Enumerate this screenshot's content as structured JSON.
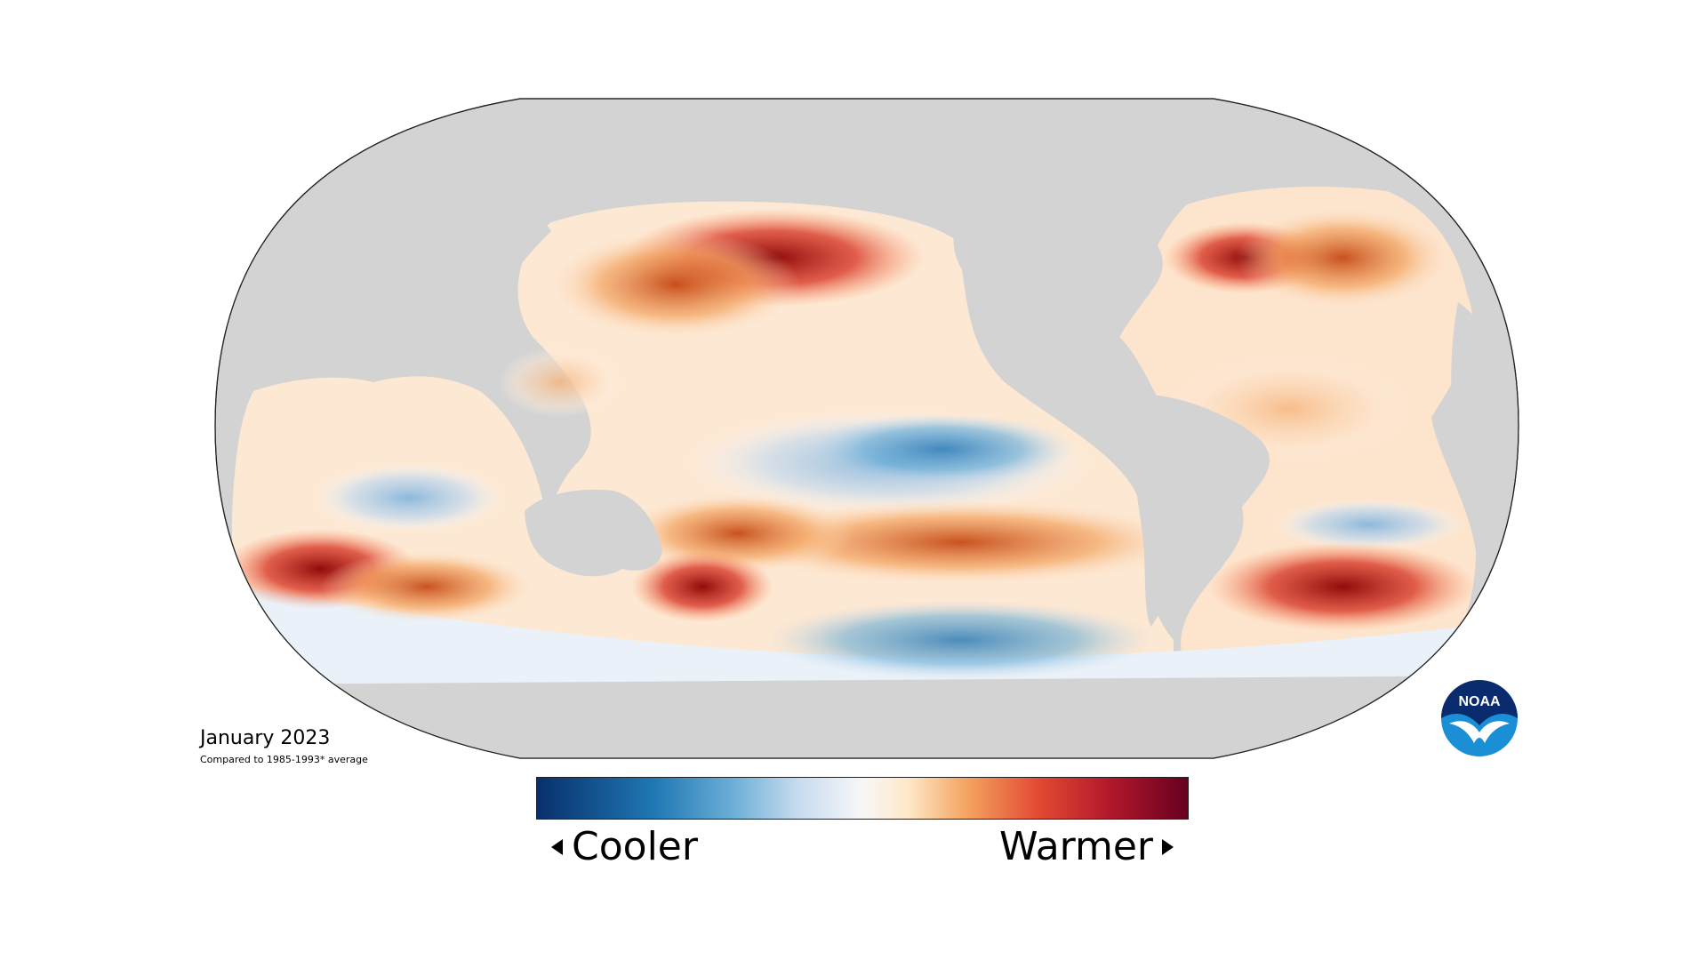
{
  "title": "January 2023",
  "subtitle": "Compared to 1985-1993* average",
  "legend": {
    "cool_label": "Cooler",
    "warm_label": "Warmer",
    "colors": [
      "#08306b",
      "#1f78b4",
      "#6baed6",
      "#c6dbef",
      "#f7f7f7",
      "#fee8c8",
      "#f4a460",
      "#e34a33",
      "#b2182b",
      "#67001f"
    ]
  },
  "logo": {
    "name": "noaa-logo",
    "text": "NOAA",
    "colors": {
      "outer": "#0a2c6e",
      "inner": "#1a8fd6",
      "bird": "#ffffff"
    }
  },
  "map": {
    "projection": "Robinson",
    "land_color": "#d3d3d3",
    "ocean_palette": [
      "#2c7bb6",
      "#abd9e9",
      "#ffffff",
      "#fdae61",
      "#d7191c",
      "#8b0000"
    ]
  }
}
